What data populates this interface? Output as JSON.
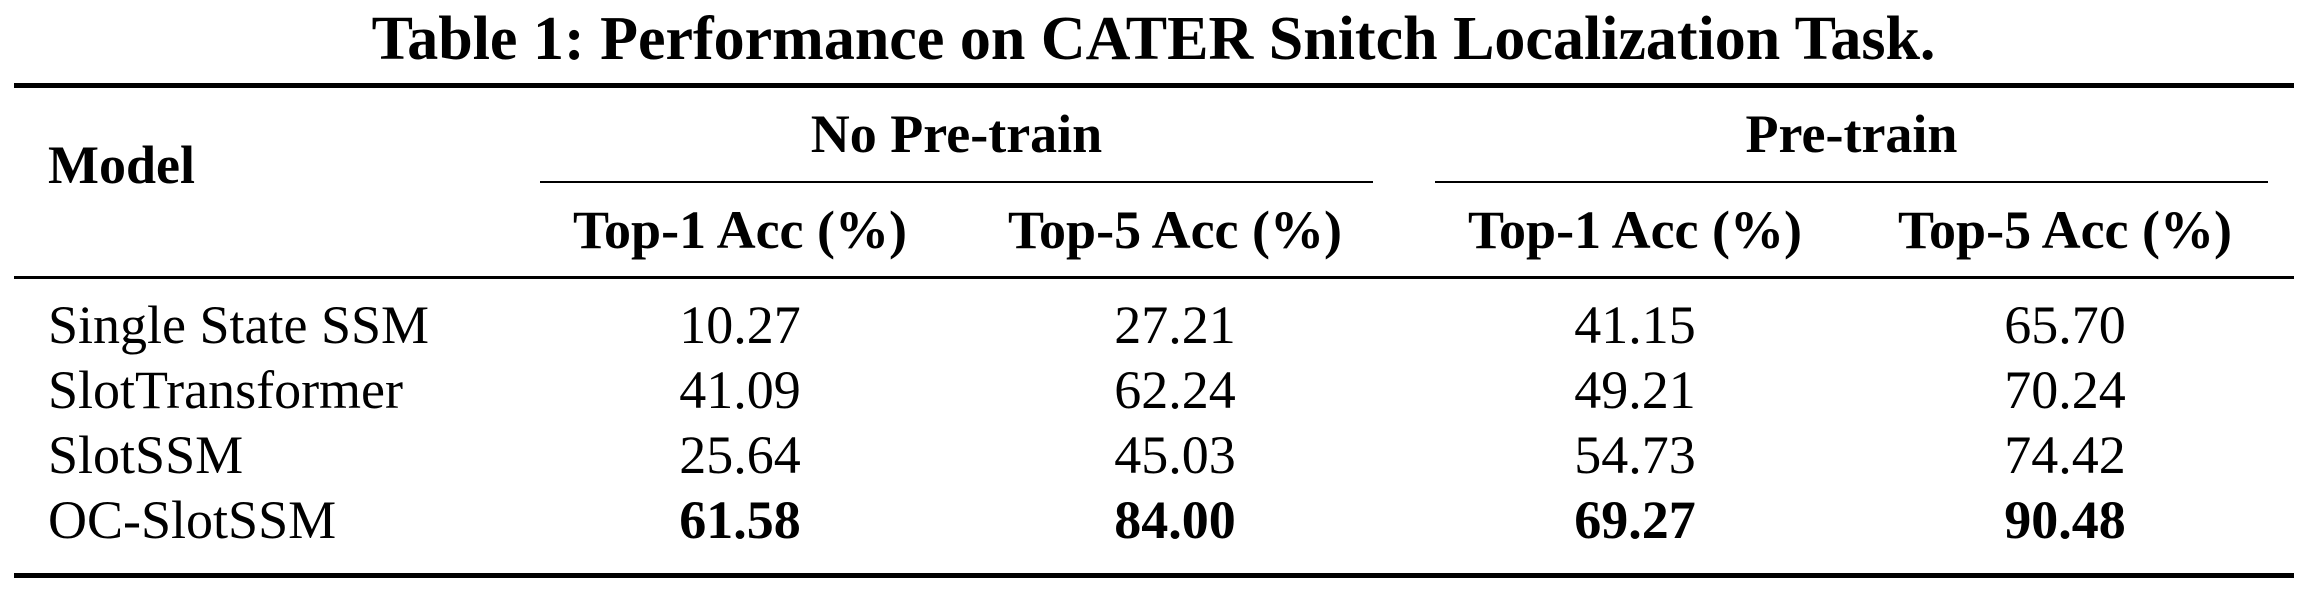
{
  "caption": "Table 1: Performance on CATER Snitch Localization Task.",
  "table": {
    "model_header": "Model",
    "groups": [
      {
        "label": "No Pre-train"
      },
      {
        "label": "Pre-train"
      }
    ],
    "columns": [
      "Top-1 Acc (%)",
      "Top-5 Acc (%)",
      "Top-1 Acc (%)",
      "Top-5 Acc (%)"
    ],
    "rows": [
      {
        "model": "Single State SSM",
        "values": [
          "10.27",
          "27.21",
          "41.15",
          "65.70"
        ],
        "bold": false
      },
      {
        "model": "SlotTransformer",
        "values": [
          "41.09",
          "62.24",
          "49.21",
          "70.24"
        ],
        "bold": false
      },
      {
        "model": "SlotSSM",
        "values": [
          "25.64",
          "45.03",
          "54.73",
          "74.42"
        ],
        "bold": false
      },
      {
        "model": "OC-SlotSSM",
        "values": [
          "61.58",
          "84.00",
          "69.27",
          "90.48"
        ],
        "bold": true
      }
    ]
  }
}
